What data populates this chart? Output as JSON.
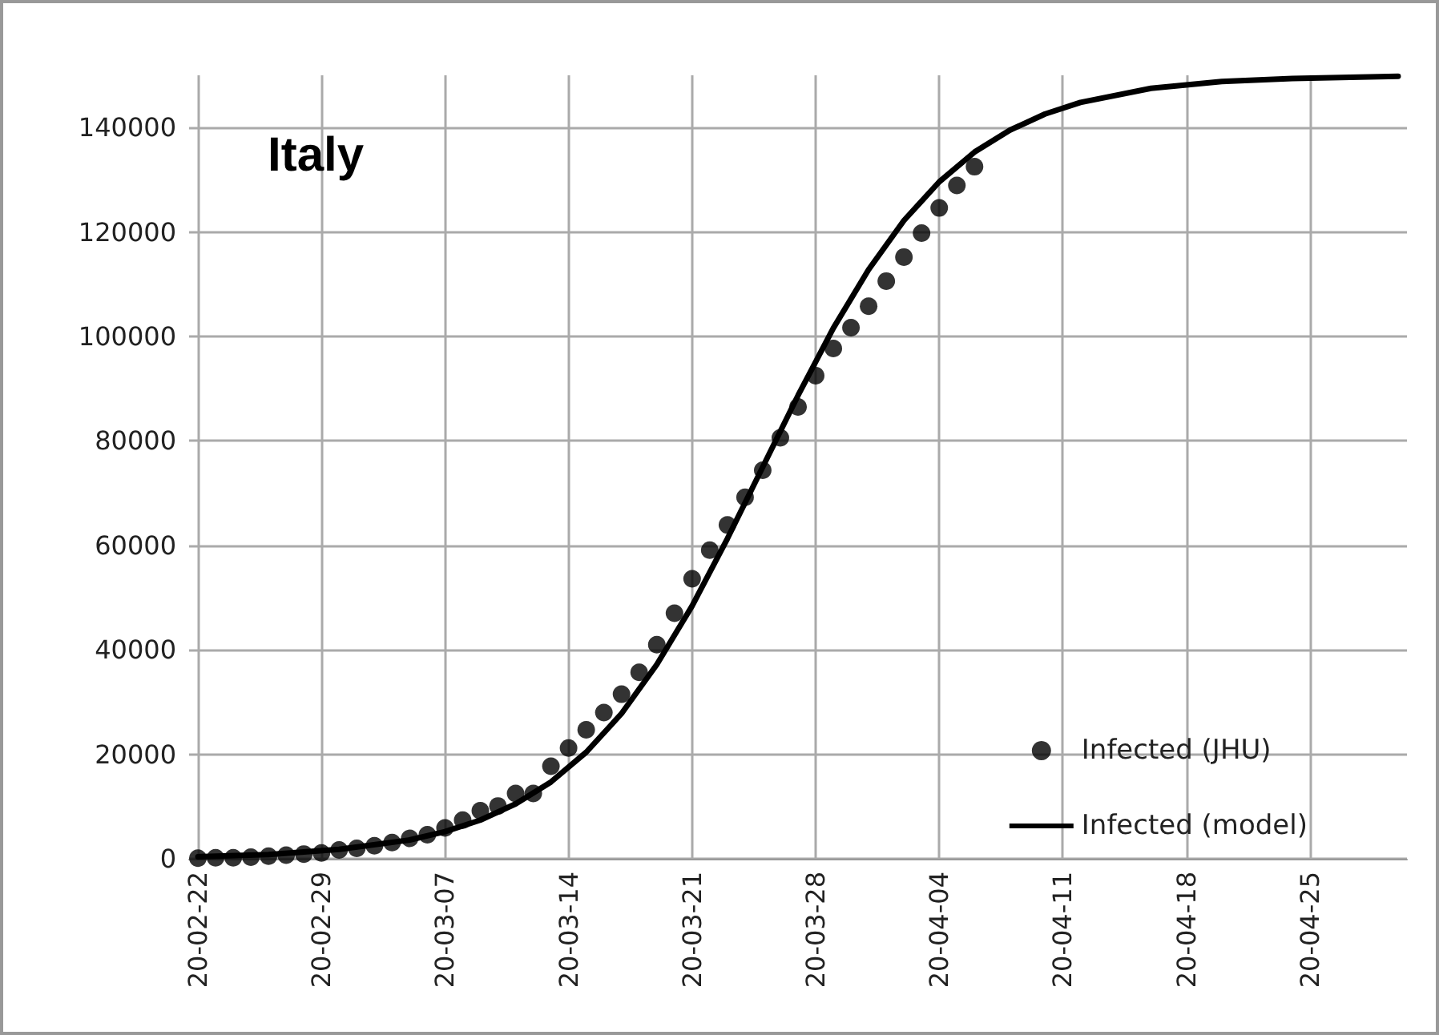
{
  "chart_data": {
    "type": "line",
    "title": "Italy",
    "xlim": [
      "--02-21T12:00",
      "--04-30T12:00"
    ],
    "xticks": [
      {
        "value": "--02-22",
        "label": "20-02-22"
      },
      {
        "value": "--02-29",
        "label": "20-02-29"
      },
      {
        "value": "--03-07",
        "label": "20-03-07"
      },
      {
        "value": "--03-14",
        "label": "20-03-14"
      },
      {
        "value": "--03-21",
        "label": "20-03-21"
      },
      {
        "value": "--03-28",
        "label": "20-03-28"
      },
      {
        "value": "--04-04",
        "label": "20-04-04"
      },
      {
        "value": "--04-11",
        "label": "20-04-11"
      },
      {
        "value": "--04-18",
        "label": "20-04-18"
      },
      {
        "value": "--04-25",
        "label": "20-04-25"
      }
    ],
    "ylim": [
      0,
      150000
    ],
    "yticks": [
      0,
      20000,
      40000,
      60000,
      80000,
      100000,
      120000,
      140000
    ],
    "grid": true,
    "legend": "bottom right",
    "series": [
      {
        "name": "Infected (JHU)",
        "type": "scatter",
        "marker": "circle",
        "color": "#000000",
        "x": [
          "--02-22",
          "--02-23",
          "--02-24",
          "--02-25",
          "--02-26",
          "--02-27",
          "--02-28",
          "--02-29",
          "--03-01",
          "--03-02",
          "--03-03",
          "--03-04",
          "--03-05",
          "--03-06",
          "--03-07",
          "--03-08",
          "--03-09",
          "--03-10",
          "--03-11",
          "--03-12",
          "--03-13",
          "--03-14",
          "--03-15",
          "--03-16",
          "--03-17",
          "--03-18",
          "--03-19",
          "--03-20",
          "--03-21",
          "--03-22",
          "--03-23",
          "--03-24",
          "--03-25",
          "--03-26",
          "--03-27",
          "--03-28",
          "--03-29",
          "--03-30",
          "--03-31",
          "--04-01",
          "--04-02",
          "--04-03",
          "--04-04",
          "--04-05",
          "--04-06"
        ],
        "values": [
          100,
          200,
          200,
          300,
          500,
          700,
          900,
          1100,
          1700,
          2000,
          2500,
          3100,
          3900,
          4600,
          5900,
          7400,
          9200,
          10100,
          12500,
          12500,
          17700,
          21200,
          24700,
          28000,
          31500,
          35700,
          41000,
          47000,
          53600,
          59100,
          63900,
          69200,
          74400,
          80600,
          86500,
          92500,
          97700,
          101700,
          105800,
          110600,
          115200,
          119800,
          124600,
          128900,
          132500
        ]
      },
      {
        "name": "Infected (model)",
        "marker": "none",
        "line_style": "solid",
        "color": "#000000",
        "x": [
          "--02-22",
          "--02-26",
          "--03-01",
          "--03-05",
          "--03-07",
          "--03-09",
          "--03-11",
          "--03-13",
          "--03-15",
          "--03-17",
          "--03-19",
          "--03-21",
          "--03-23",
          "--03-25",
          "--03-27",
          "--03-29",
          "--03-31",
          "--04-02",
          "--04-04",
          "--04-06",
          "--04-08",
          "--04-10",
          "--04-12",
          "--04-16",
          "--04-20",
          "--04-24",
          "--04-30"
        ],
        "values": [
          400,
          800,
          1800,
          3600,
          5200,
          7400,
          10500,
          14700,
          20400,
          27800,
          37200,
          48400,
          61300,
          75000,
          88700,
          101600,
          112800,
          122200,
          129600,
          135300,
          139500,
          142600,
          144800,
          147500,
          148800,
          149400,
          149800
        ]
      }
    ]
  }
}
